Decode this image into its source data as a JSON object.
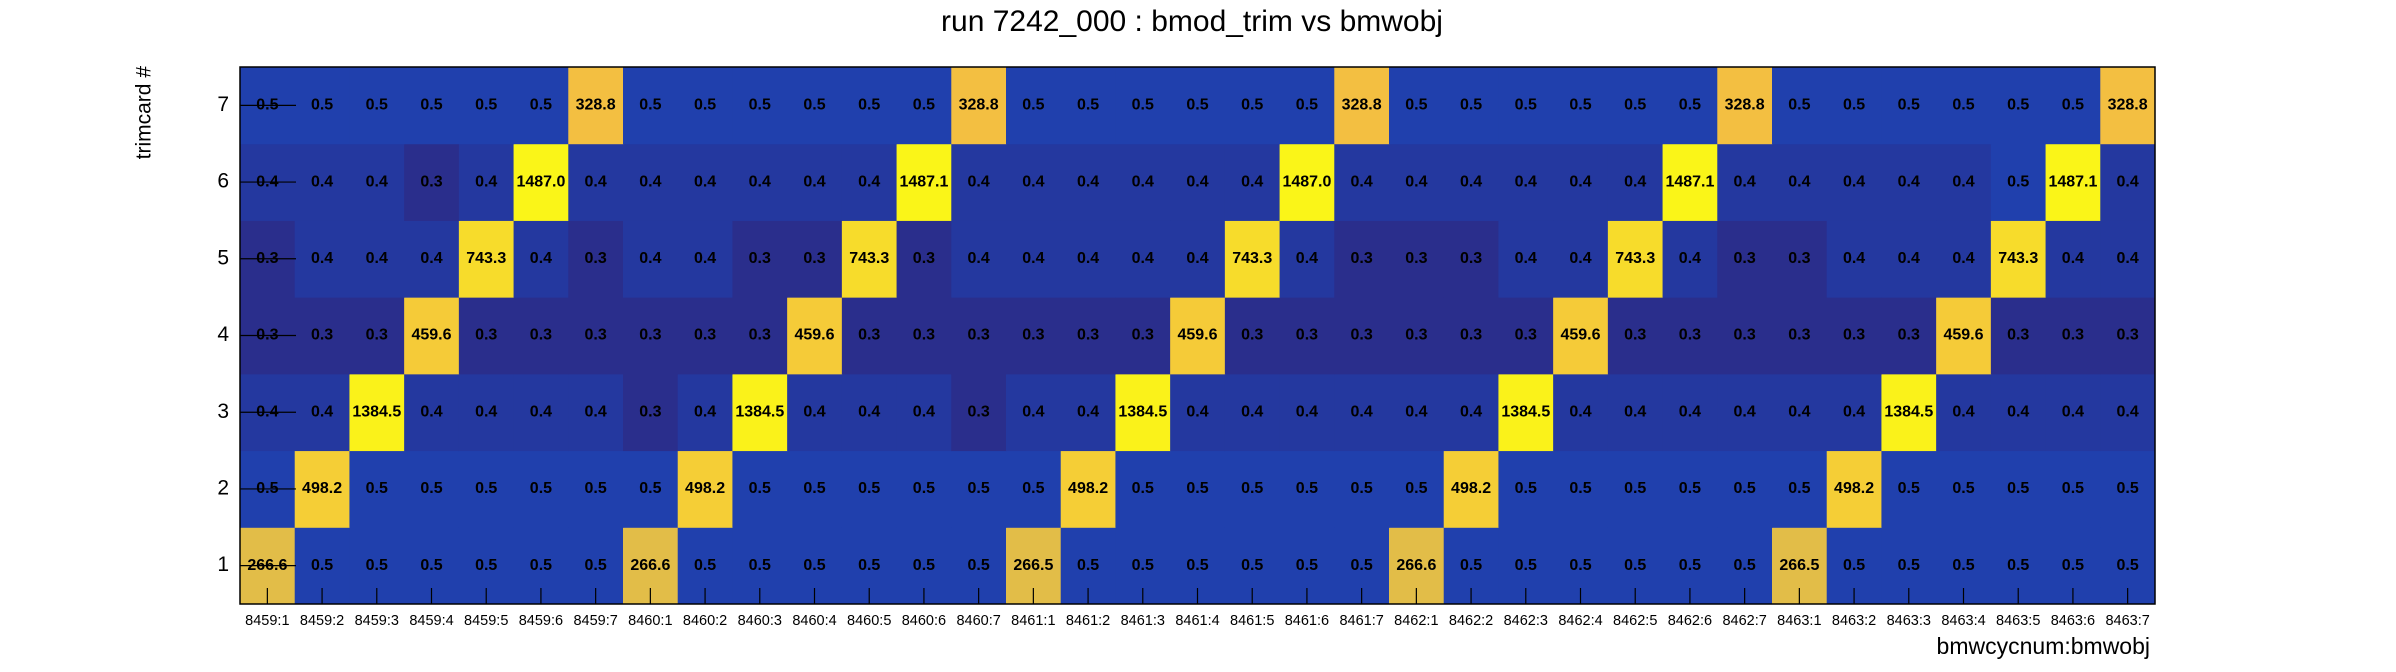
{
  "chart_data": {
    "type": "heatmap",
    "title": "run 7242_000 : bmod_trim vs bmwobj",
    "x_label": "bmwcycnum:bmwobj",
    "y_label": "trimcard #",
    "categories": [
      "8459:1",
      "8459:2",
      "8459:3",
      "8459:4",
      "8459:5",
      "8459:6",
      "8459:7",
      "8460:1",
      "8460:2",
      "8460:3",
      "8460:4",
      "8460:5",
      "8460:6",
      "8460:7",
      "8461:1",
      "8461:2",
      "8461:3",
      "8461:4",
      "8461:5",
      "8461:6",
      "8461:7",
      "8462:1",
      "8462:2",
      "8462:3",
      "8462:4",
      "8462:5",
      "8462:6",
      "8462:7",
      "8463:1",
      "8463:2",
      "8463:3",
      "8463:4",
      "8463:5",
      "8463:6",
      "8463:7"
    ],
    "y_categories": [
      1,
      2,
      3,
      4,
      5,
      6,
      7
    ],
    "z": [
      [
        266.6,
        0.5,
        0.5,
        0.5,
        0.5,
        0.5,
        0.5,
        266.6,
        0.5,
        0.5,
        0.5,
        0.5,
        0.5,
        0.5,
        266.5,
        0.5,
        0.5,
        0.5,
        0.5,
        0.5,
        0.5,
        266.6,
        0.5,
        0.5,
        0.5,
        0.5,
        0.5,
        0.5,
        266.5,
        0.5,
        0.5,
        0.5,
        0.5,
        0.5,
        0.5
      ],
      [
        0.5,
        498.2,
        0.5,
        0.5,
        0.5,
        0.5,
        0.5,
        0.5,
        498.2,
        0.5,
        0.5,
        0.5,
        0.5,
        0.5,
        0.5,
        498.2,
        0.5,
        0.5,
        0.5,
        0.5,
        0.5,
        0.5,
        498.2,
        0.5,
        0.5,
        0.5,
        0.5,
        0.5,
        0.5,
        498.2,
        0.5,
        0.5,
        0.5,
        0.5,
        0.5
      ],
      [
        0.4,
        0.4,
        1384.5,
        0.4,
        0.4,
        0.4,
        0.4,
        0.3,
        0.4,
        1384.5,
        0.4,
        0.4,
        0.4,
        0.3,
        0.4,
        0.4,
        1384.5,
        0.4,
        0.4,
        0.4,
        0.4,
        0.4,
        0.4,
        1384.5,
        0.4,
        0.4,
        0.4,
        0.4,
        0.4,
        0.4,
        1384.5,
        0.4,
        0.4,
        0.4,
        0.4
      ],
      [
        0.3,
        0.3,
        0.3,
        459.6,
        0.3,
        0.3,
        0.3,
        0.3,
        0.3,
        0.3,
        459.6,
        0.3,
        0.3,
        0.3,
        0.3,
        0.3,
        0.3,
        459.6,
        0.3,
        0.3,
        0.3,
        0.3,
        0.3,
        0.3,
        459.6,
        0.3,
        0.3,
        0.3,
        0.3,
        0.3,
        0.3,
        459.6,
        0.3,
        0.3,
        0.3
      ],
      [
        0.3,
        0.4,
        0.4,
        0.4,
        743.3,
        0.4,
        0.3,
        0.4,
        0.4,
        0.3,
        0.3,
        743.3,
        0.3,
        0.4,
        0.4,
        0.4,
        0.4,
        0.4,
        743.3,
        0.4,
        0.3,
        0.3,
        0.3,
        0.4,
        0.4,
        743.3,
        0.4,
        0.3,
        0.3,
        0.4,
        0.4,
        0.4,
        743.3,
        0.4,
        0.4
      ],
      [
        0.4,
        0.4,
        0.4,
        0.3,
        0.4,
        1487.0,
        0.4,
        0.4,
        0.4,
        0.4,
        0.4,
        0.4,
        1487.1,
        0.4,
        0.4,
        0.4,
        0.4,
        0.4,
        0.4,
        1487.0,
        0.4,
        0.4,
        0.4,
        0.4,
        0.4,
        0.4,
        1487.1,
        0.4,
        0.4,
        0.4,
        0.4,
        0.4,
        0.5,
        1487.1,
        0.4
      ],
      [
        0.5,
        0.5,
        0.5,
        0.5,
        0.5,
        0.5,
        328.8,
        0.5,
        0.5,
        0.5,
        0.5,
        0.5,
        0.5,
        328.8,
        0.5,
        0.5,
        0.5,
        0.5,
        0.5,
        0.5,
        328.8,
        0.5,
        0.5,
        0.5,
        0.5,
        0.5,
        0.5,
        328.8,
        0.5,
        0.5,
        0.5,
        0.5,
        0.5,
        0.5,
        328.8
      ]
    ],
    "z_labels": [
      [
        "266.6",
        "0.5",
        "0.5",
        "0.5",
        "0.5",
        "0.5",
        "0.5",
        "266.6",
        "0.5",
        "0.5",
        "0.5",
        "0.5",
        "0.5",
        "0.5",
        "266.5",
        "0.5",
        "0.5",
        "0.5",
        "0.5",
        "0.5",
        "0.5",
        "266.6",
        "0.5",
        "0.5",
        "0.5",
        "0.5",
        "0.5",
        "0.5",
        "266.5",
        "0.5",
        "0.5",
        "0.5",
        "0.5",
        "0.5",
        "0.5"
      ],
      [
        "0.5",
        "498.2",
        "0.5",
        "0.5",
        "0.5",
        "0.5",
        "0.5",
        "0.5",
        "498.2",
        "0.5",
        "0.5",
        "0.5",
        "0.5",
        "0.5",
        "0.5",
        "498.2",
        "0.5",
        "0.5",
        "0.5",
        "0.5",
        "0.5",
        "0.5",
        "498.2",
        "0.5",
        "0.5",
        "0.5",
        "0.5",
        "0.5",
        "0.5",
        "498.2",
        "0.5",
        "0.5",
        "0.5",
        "0.5",
        "0.5"
      ],
      [
        "0.4",
        "0.4",
        "1384.5",
        "0.4",
        "0.4",
        "0.4",
        "0.4",
        "0.3",
        "0.4",
        "1384.5",
        "0.4",
        "0.4",
        "0.4",
        "0.3",
        "0.4",
        "0.4",
        "1384.5",
        "0.4",
        "0.4",
        "0.4",
        "0.4",
        "0.4",
        "0.4",
        "1384.5",
        "0.4",
        "0.4",
        "0.4",
        "0.4",
        "0.4",
        "0.4",
        "1384.5",
        "0.4",
        "0.4",
        "0.4",
        "0.4"
      ],
      [
        "0.3",
        "0.3",
        "0.3",
        "459.6",
        "0.3",
        "0.3",
        "0.3",
        "0.3",
        "0.3",
        "0.3",
        "459.6",
        "0.3",
        "0.3",
        "0.3",
        "0.3",
        "0.3",
        "0.3",
        "459.6",
        "0.3",
        "0.3",
        "0.3",
        "0.3",
        "0.3",
        "0.3",
        "459.6",
        "0.3",
        "0.3",
        "0.3",
        "0.3",
        "0.3",
        "0.3",
        "459.6",
        "0.3",
        "0.3",
        "0.3"
      ],
      [
        "0.3",
        "0.4",
        "0.4",
        "0.4",
        "743.3",
        "0.4",
        "0.3",
        "0.4",
        "0.4",
        "0.3",
        "0.3",
        "743.3",
        "0.3",
        "0.4",
        "0.4",
        "0.4",
        "0.4",
        "0.4",
        "743.3",
        "0.4",
        "0.3",
        "0.3",
        "0.3",
        "0.4",
        "0.4",
        "743.3",
        "0.4",
        "0.3",
        "0.3",
        "0.4",
        "0.4",
        "0.4",
        "743.3",
        "0.4",
        "0.4"
      ],
      [
        "0.4",
        "0.4",
        "0.4",
        "0.3",
        "0.4",
        "1487.0",
        "0.4",
        "0.4",
        "0.4",
        "0.4",
        "0.4",
        "0.4",
        "1487.1",
        "0.4",
        "0.4",
        "0.4",
        "0.4",
        "0.4",
        "0.4",
        "1487.0",
        "0.4",
        "0.4",
        "0.4",
        "0.4",
        "0.4",
        "0.4",
        "1487.1",
        "0.4",
        "0.4",
        "0.4",
        "0.4",
        "0.4",
        "0.5",
        "1487.1",
        "0.4"
      ],
      [
        "0.5",
        "0.5",
        "0.5",
        "0.5",
        "0.5",
        "0.5",
        "328.8",
        "0.5",
        "0.5",
        "0.5",
        "0.5",
        "0.5",
        "0.5",
        "328.8",
        "0.5",
        "0.5",
        "0.5",
        "0.5",
        "0.5",
        "0.5",
        "328.8",
        "0.5",
        "0.5",
        "0.5",
        "0.5",
        "0.5",
        "0.5",
        "328.8",
        "0.5",
        "0.5",
        "0.5",
        "0.5",
        "0.5",
        "0.5",
        "328.8"
      ]
    ],
    "color_scale": "log"
  }
}
